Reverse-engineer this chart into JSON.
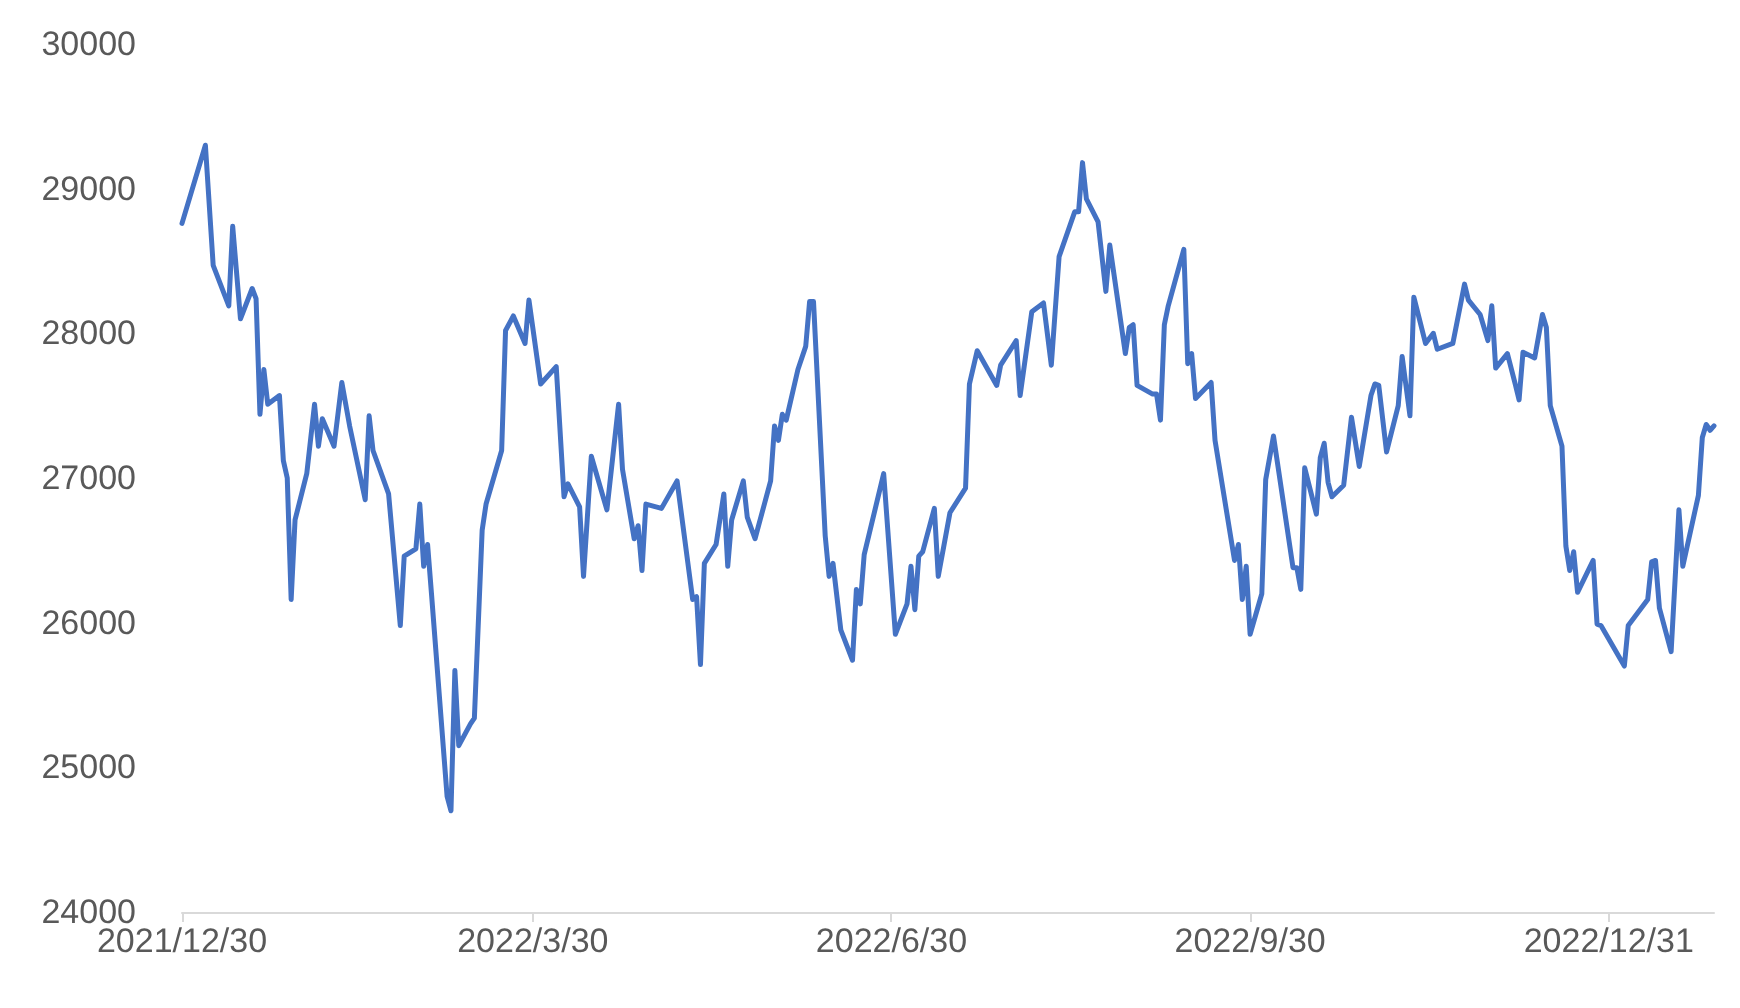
{
  "chart_data": {
    "type": "line",
    "x": [
      "2021-12-30",
      "2022-01-05",
      "2022-01-07",
      "2022-01-11",
      "2022-01-12",
      "2022-01-14",
      "2022-01-17",
      "2022-01-18",
      "2022-01-19",
      "2022-01-20",
      "2022-01-21",
      "2022-01-24",
      "2022-01-25",
      "2022-01-26",
      "2022-01-27",
      "2022-01-28",
      "2022-01-31",
      "2022-02-02",
      "2022-02-03",
      "2022-02-04",
      "2022-02-07",
      "2022-02-09",
      "2022-02-11",
      "2022-02-15",
      "2022-02-16",
      "2022-02-17",
      "2022-02-21",
      "2022-02-24",
      "2022-02-25",
      "2022-02-28",
      "2022-03-01",
      "2022-03-02",
      "2022-03-03",
      "2022-03-04",
      "2022-03-08",
      "2022-03-09",
      "2022-03-10",
      "2022-03-11",
      "2022-03-14",
      "2022-03-15",
      "2022-03-17",
      "2022-03-18",
      "2022-03-22",
      "2022-03-23",
      "2022-03-25",
      "2022-03-28",
      "2022-03-29",
      "2022-04-01",
      "2022-04-05",
      "2022-04-07",
      "2022-04-08",
      "2022-04-11",
      "2022-04-12",
      "2022-04-14",
      "2022-04-18",
      "2022-04-21",
      "2022-04-22",
      "2022-04-25",
      "2022-04-26",
      "2022-04-27",
      "2022-04-28",
      "2022-05-02",
      "2022-05-06",
      "2022-05-10",
      "2022-05-11",
      "2022-05-12",
      "2022-05-13",
      "2022-05-16",
      "2022-05-18",
      "2022-05-19",
      "2022-05-20",
      "2022-05-23",
      "2022-05-24",
      "2022-05-26",
      "2022-05-30",
      "2022-05-31",
      "2022-06-01",
      "2022-06-02",
      "2022-06-03",
      "2022-06-06",
      "2022-06-08",
      "2022-06-09",
      "2022-06-10",
      "2022-06-13",
      "2022-06-14",
      "2022-06-15",
      "2022-06-17",
      "2022-06-20",
      "2022-06-21",
      "2022-06-22",
      "2022-06-23",
      "2022-06-28",
      "2022-07-01",
      "2022-07-04",
      "2022-07-05",
      "2022-07-06",
      "2022-07-07",
      "2022-07-08",
      "2022-07-11",
      "2022-07-12",
      "2022-07-15",
      "2022-07-19",
      "2022-07-20",
      "2022-07-22",
      "2022-07-27",
      "2022-07-28",
      "2022-08-01",
      "2022-08-02",
      "2022-08-05",
      "2022-08-08",
      "2022-08-10",
      "2022-08-12",
      "2022-08-16",
      "2022-08-17",
      "2022-08-18",
      "2022-08-19",
      "2022-08-22",
      "2022-08-24",
      "2022-08-25",
      "2022-08-29",
      "2022-08-30",
      "2022-08-31",
      "2022-09-01",
      "2022-09-05",
      "2022-09-06",
      "2022-09-07",
      "2022-09-08",
      "2022-09-09",
      "2022-09-13",
      "2022-09-14",
      "2022-09-15",
      "2022-09-16",
      "2022-09-20",
      "2022-09-21",
      "2022-09-26",
      "2022-09-27",
      "2022-09-28",
      "2022-09-29",
      "2022-09-30",
      "2022-10-03",
      "2022-10-04",
      "2022-10-06",
      "2022-10-11",
      "2022-10-12",
      "2022-10-13",
      "2022-10-14",
      "2022-10-17",
      "2022-10-18",
      "2022-10-19",
      "2022-10-20",
      "2022-10-21",
      "2022-10-24",
      "2022-10-26",
      "2022-10-28",
      "2022-10-31",
      "2022-11-01",
      "2022-11-02",
      "2022-11-04",
      "2022-11-07",
      "2022-11-08",
      "2022-11-10",
      "2022-11-11",
      "2022-11-14",
      "2022-11-16",
      "2022-11-17",
      "2022-11-21",
      "2022-11-24",
      "2022-11-25",
      "2022-11-28",
      "2022-11-30",
      "2022-12-01",
      "2022-12-02",
      "2022-12-05",
      "2022-12-07",
      "2022-12-08",
      "2022-12-09",
      "2022-12-12",
      "2022-12-14",
      "2022-12-15",
      "2022-12-16",
      "2022-12-19",
      "2022-12-20",
      "2022-12-21",
      "2022-12-22",
      "2022-12-23",
      "2022-12-27",
      "2022-12-28",
      "2022-12-29",
      "2023-01-04",
      "2023-01-05",
      "2023-01-10",
      "2023-01-11",
      "2023-01-12",
      "2023-01-13",
      "2023-01-16",
      "2023-01-18",
      "2023-01-19",
      "2023-01-23",
      "2023-01-24",
      "2023-01-25",
      "2023-01-26",
      "2023-01-27"
    ],
    "series": [
      {
        "color": "#4472c4",
        "values": [
          28760,
          29300,
          28470,
          28190,
          28740,
          28100,
          28310,
          28240,
          27440,
          27750,
          27510,
          27570,
          27120,
          27000,
          26160,
          26710,
          27030,
          27510,
          27220,
          27410,
          27220,
          27660,
          27360,
          26850,
          27430,
          27190,
          26890,
          25980,
          26460,
          26510,
          26820,
          26390,
          26540,
          26200,
          24800,
          24700,
          25670,
          25150,
          25300,
          25340,
          26640,
          26820,
          27190,
          28020,
          28120,
          27930,
          28230,
          27650,
          27770,
          26870,
          26960,
          26800,
          26320,
          27150,
          26780,
          27510,
          27060,
          26580,
          26670,
          26360,
          26820,
          26790,
          26980,
          26160,
          26180,
          25710,
          26410,
          26540,
          26890,
          26390,
          26710,
          26980,
          26730,
          26580,
          26980,
          27360,
          27260,
          27440,
          27400,
          27750,
          27910,
          28220,
          28220,
          26600,
          26320,
          26410,
          25950,
          25740,
          26230,
          26130,
          26470,
          27030,
          25920,
          26130,
          26390,
          26090,
          26460,
          26490,
          26790,
          26320,
          26760,
          26930,
          27650,
          27880,
          27640,
          27780,
          27950,
          27570,
          28150,
          28210,
          27780,
          28530,
          28840,
          28840,
          29180,
          28930,
          28770,
          28290,
          28610,
          27860,
          28040,
          28060,
          27640,
          27580,
          27580,
          27400,
          28060,
          28190,
          28580,
          27790,
          27860,
          27550,
          27660,
          27260,
          26430,
          26540,
          26160,
          26390,
          25920,
          26200,
          26990,
          27290,
          26380,
          26380,
          26230,
          27070,
          26750,
          27140,
          27240,
          26970,
          26870,
          26950,
          27420,
          27080,
          27570,
          27650,
          27640,
          27180,
          27500,
          27840,
          27430,
          28250,
          27930,
          28000,
          27890,
          27930,
          28340,
          28230,
          28130,
          27950,
          28190,
          27760,
          27860,
          27650,
          27540,
          27870,
          27830,
          28130,
          28040,
          27500,
          27220,
          26530,
          26360,
          26490,
          26210,
          26430,
          25990,
          25980,
          25700,
          25980,
          26160,
          26420,
          26430,
          26100,
          25800,
          26780,
          26390,
          26880,
          27280,
          27370,
          27330,
          27360
        ]
      }
    ],
    "xlim": [
      "2021-12-30",
      "2023-01-27"
    ],
    "xticks": [
      {
        "value": "2021-12-30",
        "label": "2021/12/30"
      },
      {
        "value": "2022-03-30",
        "label": "2022/3/30"
      },
      {
        "value": "2022-06-30",
        "label": "2022/6/30"
      },
      {
        "value": "2022-09-30",
        "label": "2022/9/30"
      },
      {
        "value": "2022-12-31",
        "label": "2022/12/31"
      }
    ],
    "ylim": [
      24000,
      30000
    ],
    "yticks": [
      24000,
      25000,
      26000,
      27000,
      28000,
      29000,
      30000
    ],
    "grid": false,
    "marker": "none",
    "line_style": "solid"
  }
}
